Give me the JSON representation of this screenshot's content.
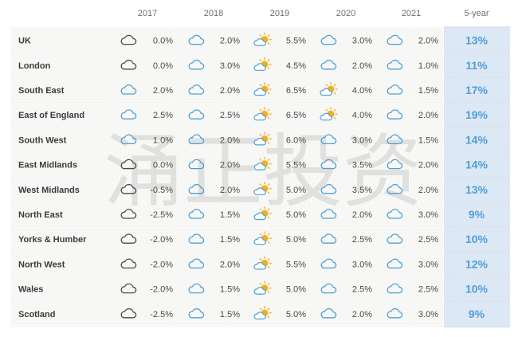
{
  "chart_data": {
    "type": "table",
    "columns": [
      "2017",
      "2018",
      "2019",
      "2020",
      "2021",
      "5-year"
    ],
    "rows": [
      {
        "region": "UK",
        "values": [
          "0.0%",
          "2.0%",
          "5.5%",
          "3.0%",
          "2.0%"
        ],
        "icons": [
          "cloud-outline-icon",
          "cloud-blue-icon",
          "sun-cloud-icon",
          "cloud-blue-icon",
          "cloud-blue-icon"
        ],
        "total": "13%"
      },
      {
        "region": "London",
        "values": [
          "0.0%",
          "3.0%",
          "4.5%",
          "2.0%",
          "1.0%"
        ],
        "icons": [
          "cloud-outline-icon",
          "cloud-blue-icon",
          "sun-cloud-icon",
          "cloud-blue-icon",
          "cloud-blue-icon"
        ],
        "total": "11%"
      },
      {
        "region": "South East",
        "values": [
          "2.0%",
          "2.0%",
          "6.5%",
          "4.0%",
          "1.5%"
        ],
        "icons": [
          "cloud-blue-icon",
          "cloud-blue-icon",
          "sun-cloud-icon",
          "sun-cloud-icon",
          "cloud-blue-icon"
        ],
        "total": "17%"
      },
      {
        "region": "East of England",
        "values": [
          "2.5%",
          "2.5%",
          "6.5%",
          "4.0%",
          "2.0%"
        ],
        "icons": [
          "cloud-blue-icon",
          "cloud-blue-icon",
          "sun-cloud-icon",
          "sun-cloud-icon",
          "cloud-blue-icon"
        ],
        "total": "19%"
      },
      {
        "region": "South West",
        "values": [
          "1.0%",
          "2.0%",
          "6.0%",
          "3.0%",
          "1.5%"
        ],
        "icons": [
          "cloud-blue-icon",
          "cloud-blue-icon",
          "sun-cloud-icon",
          "cloud-blue-icon",
          "cloud-blue-icon"
        ],
        "total": "14%"
      },
      {
        "region": "East Midlands",
        "values": [
          "0.0%",
          "2.0%",
          "5.5%",
          "3.5%",
          "2.0%"
        ],
        "icons": [
          "cloud-outline-icon",
          "cloud-blue-icon",
          "sun-cloud-icon",
          "cloud-blue-icon",
          "cloud-blue-icon"
        ],
        "total": "14%"
      },
      {
        "region": "West Midlands",
        "values": [
          "-0.5%",
          "2.0%",
          "5.0%",
          "3.5%",
          "2.0%"
        ],
        "icons": [
          "cloud-outline-icon",
          "cloud-blue-icon",
          "sun-cloud-icon",
          "cloud-blue-icon",
          "cloud-blue-icon"
        ],
        "total": "13%"
      },
      {
        "region": "North East",
        "values": [
          "-2.5%",
          "1.5%",
          "5.0%",
          "2.0%",
          "3.0%"
        ],
        "icons": [
          "cloud-outline-icon",
          "cloud-blue-icon",
          "sun-cloud-icon",
          "cloud-blue-icon",
          "cloud-blue-icon"
        ],
        "total": "9%"
      },
      {
        "region": "Yorks & Humber",
        "values": [
          "-2.0%",
          "1.5%",
          "5.0%",
          "2.5%",
          "2.5%"
        ],
        "icons": [
          "cloud-outline-icon",
          "cloud-blue-icon",
          "sun-cloud-icon",
          "cloud-blue-icon",
          "cloud-blue-icon"
        ],
        "total": "10%"
      },
      {
        "region": "North West",
        "values": [
          "-2.0%",
          "2.0%",
          "5.5%",
          "3.0%",
          "3.0%"
        ],
        "icons": [
          "cloud-outline-icon",
          "cloud-blue-icon",
          "sun-cloud-icon",
          "cloud-blue-icon",
          "cloud-blue-icon"
        ],
        "total": "12%"
      },
      {
        "region": "Wales",
        "values": [
          "-2.0%",
          "1.5%",
          "5.0%",
          "2.5%",
          "2.5%"
        ],
        "icons": [
          "cloud-outline-icon",
          "cloud-blue-icon",
          "sun-cloud-icon",
          "cloud-blue-icon",
          "cloud-blue-icon"
        ],
        "total": "10%"
      },
      {
        "region": "Scotland",
        "values": [
          "-2.5%",
          "1.5%",
          "5.0%",
          "2.0%",
          "3.0%"
        ],
        "icons": [
          "cloud-outline-icon",
          "cloud-blue-icon",
          "sun-cloud-icon",
          "cloud-blue-icon",
          "cloud-blue-icon"
        ],
        "total": "9%"
      }
    ]
  },
  "watermark": "涌正投资",
  "colors": {
    "accent_blue": "#4f9fd6",
    "total_column_bg": "#dde8f5",
    "row_band_bg": "#f7f7f5",
    "cloud_outline": "#4a4a4a",
    "sun": "#f2b01e"
  }
}
